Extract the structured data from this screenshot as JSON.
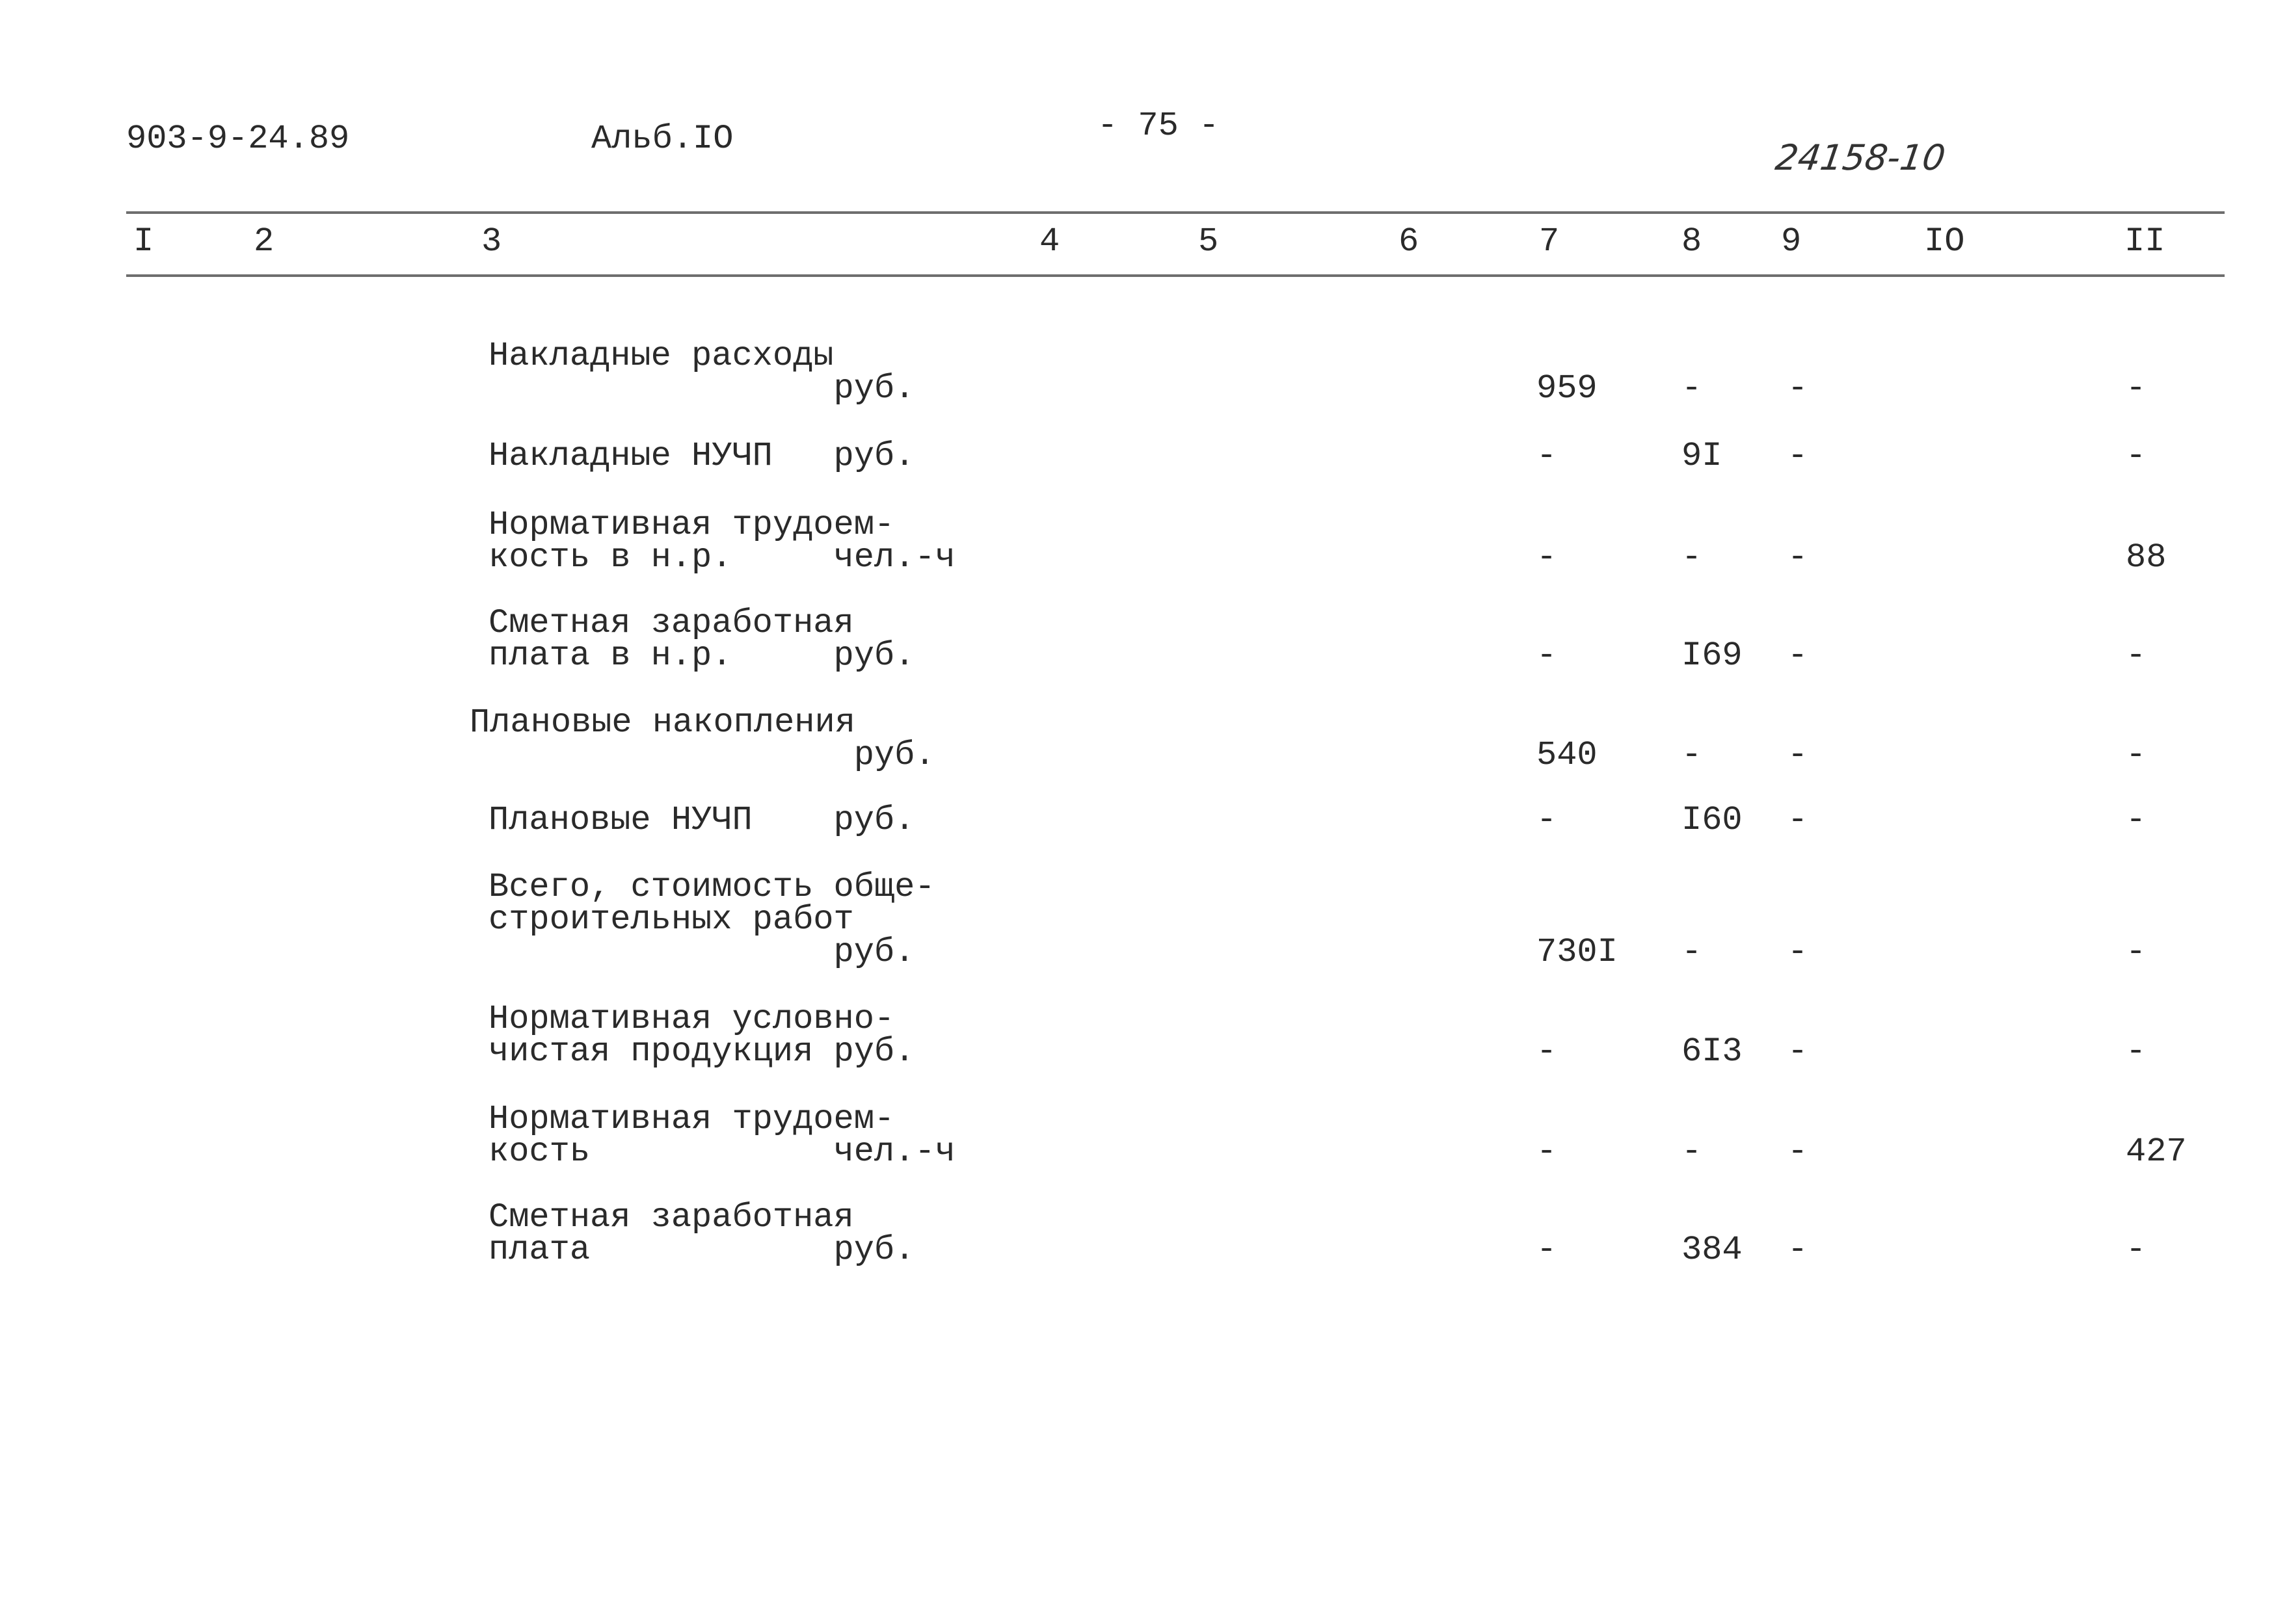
{
  "header": {
    "doc_code": "903-9-24.89",
    "album": "Альб.IO",
    "page_number": "- 75 -",
    "handwritten_number": "24158-10"
  },
  "columns": [
    "I",
    "2",
    "3",
    "4",
    "5",
    "6",
    "7",
    "8",
    "9",
    "IO",
    "II"
  ],
  "rows": [
    {
      "lines": [
        "Накладные расходы",
        "                 руб."
      ],
      "values": {
        "c7": "959",
        "c8": "-",
        "c9": "-",
        "c11": "-"
      }
    },
    {
      "lines": [
        "Накладные НУЧП   руб."
      ],
      "values": {
        "c7": "-",
        "c8": "9I",
        "c9": "-",
        "c11": "-"
      }
    },
    {
      "lines": [
        "Нормативная трудоем-",
        "кость в н.р.     чел.-ч"
      ],
      "values": {
        "c7": "-",
        "c8": "-",
        "c9": "-",
        "c11": "88"
      }
    },
    {
      "lines": [
        "Сметная заработная",
        "плата в н.р.     руб."
      ],
      "values": {
        "c7": "-",
        "c8": "I69",
        "c9": "-",
        "c11": "-"
      }
    },
    {
      "lines": [
        "Плановые накопления",
        "                  руб."
      ],
      "values": {
        "c7": "540",
        "c8": "-",
        "c9": "-",
        "c11": "-"
      }
    },
    {
      "lines": [
        "Плановые НУЧП    руб."
      ],
      "values": {
        "c7": "-",
        "c8": "I60",
        "c9": "-",
        "c11": "-"
      }
    },
    {
      "lines": [
        "Всего, стоимость обще-",
        "строительных работ",
        "                 руб."
      ],
      "values": {
        "c7": "730I",
        "c8": "-",
        "c9": "-",
        "c11": "-"
      }
    },
    {
      "lines": [
        "Нормативная условно-",
        "чистая продукция руб."
      ],
      "values": {
        "c7": "-",
        "c8": "6I3",
        "c9": "-",
        "c11": "-"
      }
    },
    {
      "lines": [
        "Нормативная трудоем-",
        "кость            чел.-ч"
      ],
      "values": {
        "c7": "-",
        "c8": "-",
        "c9": "-",
        "c11": "427"
      }
    },
    {
      "lines": [
        "Сметная заработная",
        "плата            руб."
      ],
      "values": {
        "c7": "-",
        "c8": "384",
        "c9": "-",
        "c11": "-"
      }
    }
  ]
}
